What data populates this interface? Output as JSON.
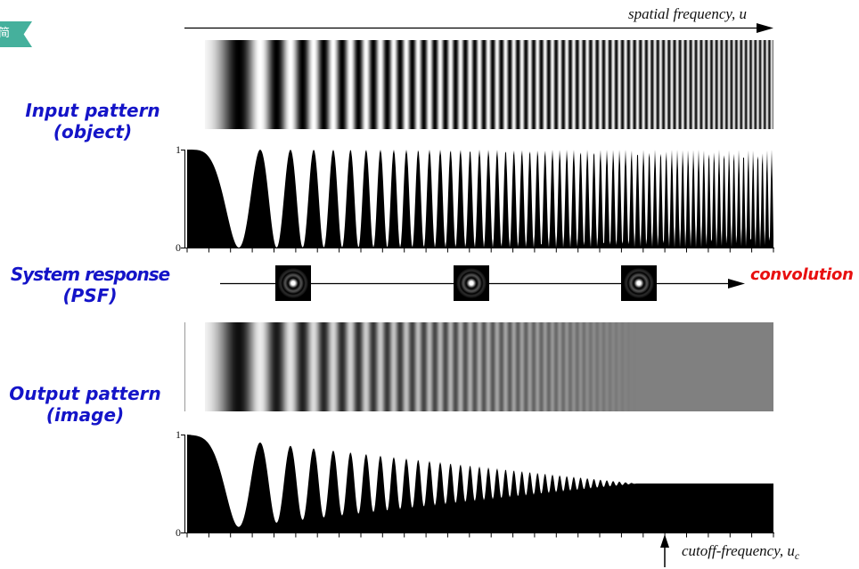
{
  "tag": {
    "label": "简"
  },
  "frequency_axis": {
    "label": "spatial frequency, u"
  },
  "input": {
    "title": "Input pattern",
    "subtitle": "(object)",
    "plot": {
      "y_max_label": "1",
      "y_min_label": "0"
    }
  },
  "system": {
    "title": "System response",
    "subtitle": "(PSF)",
    "operation_label": "convolution"
  },
  "output": {
    "title": "Output pattern",
    "subtitle": "(image)",
    "plot": {
      "y_max_label": "1",
      "y_min_label": "0"
    }
  },
  "cutoff": {
    "label": "cutoff-frequency, u",
    "subscript": "c"
  },
  "icons": {
    "psf": "airy-disk-icon"
  },
  "colors": {
    "tag": "#45b09c",
    "title_blue": "#1414c8",
    "convolution_red": "#e81010",
    "mid_gray": "#808080"
  }
}
